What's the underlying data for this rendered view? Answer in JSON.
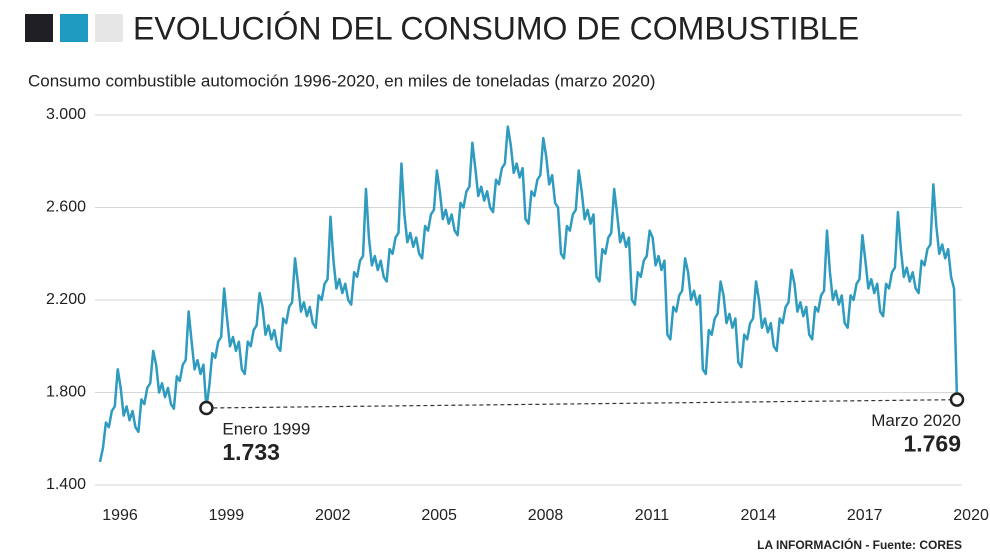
{
  "chart_data": {
    "type": "line",
    "title": "EVOLUCIÓN DEL CONSUMO DE COMBUSTIBLE",
    "subtitle": "Consumo combustible automoción 1996-2020, en miles de toneladas (marzo 2020)",
    "source": "LA INFORMACIÓN - Fuente: CORES",
    "categories": [
      "1996",
      null,
      null,
      null,
      null,
      null,
      null,
      null,
      null,
      null,
      null,
      null,
      null,
      null,
      null,
      null,
      null,
      null,
      null,
      null,
      null,
      null,
      null,
      null,
      null,
      null,
      null,
      null,
      null,
      null,
      null,
      null,
      null,
      null,
      null,
      null,
      "1999",
      null,
      null,
      null,
      null,
      null,
      null,
      null,
      null,
      null,
      null,
      null,
      null,
      null,
      null,
      null,
      null,
      null,
      null,
      null,
      null,
      null,
      null,
      null,
      null,
      null,
      null,
      null,
      null,
      null,
      null,
      null,
      null,
      null,
      null,
      null,
      "2002",
      null,
      null,
      null,
      null,
      null,
      null,
      null,
      null,
      null,
      null,
      null,
      null,
      null,
      null,
      null,
      null,
      null,
      null,
      null,
      null,
      null,
      null,
      null,
      null,
      null,
      null,
      null,
      null,
      null,
      null,
      null,
      null,
      null,
      null,
      null,
      "2005",
      null,
      null,
      null,
      null,
      null,
      null,
      null,
      null,
      null,
      null,
      null,
      null,
      null,
      null,
      null,
      null,
      null,
      null,
      null,
      null,
      null,
      null,
      null,
      null,
      null,
      null,
      null,
      null,
      null,
      null,
      null,
      null,
      null,
      null,
      null,
      "2008",
      null,
      null,
      null,
      null,
      null,
      null,
      null,
      null,
      null,
      null,
      null,
      null,
      null,
      null,
      null,
      null,
      null,
      null,
      null,
      null,
      null,
      null,
      null,
      null,
      null,
      null,
      null,
      null,
      null,
      null,
      null,
      null,
      null,
      null,
      null,
      "2011",
      null,
      null,
      null,
      null,
      null,
      null,
      null,
      null,
      null,
      null,
      null,
      null,
      null,
      null,
      null,
      null,
      null,
      null,
      null,
      null,
      null,
      null,
      null,
      null,
      null,
      null,
      null,
      null,
      null,
      null,
      null,
      null,
      null,
      null,
      null,
      "2014",
      null,
      null,
      null,
      null,
      null,
      null,
      null,
      null,
      null,
      null,
      null,
      null,
      null,
      null,
      null,
      null,
      null,
      null,
      null,
      null,
      null,
      null,
      null,
      null,
      null,
      null,
      null,
      null,
      null,
      null,
      null,
      null,
      null,
      null,
      null,
      "2017",
      null,
      null,
      null,
      null,
      null,
      null,
      null,
      null,
      null,
      null,
      null,
      null,
      null,
      null,
      null,
      null,
      null,
      null,
      null,
      null,
      null,
      null,
      null,
      null,
      null,
      null,
      null,
      null,
      null,
      null,
      null,
      null,
      null,
      null,
      null,
      "2020",
      null,
      null
    ],
    "series": [
      {
        "color": "#2e9bbf",
        "values": [
          1500,
          1560,
          1670,
          1650,
          1720,
          1740,
          1900,
          1820,
          1700,
          1740,
          1680,
          1720,
          1650,
          1630,
          1770,
          1750,
          1820,
          1840,
          1980,
          1920,
          1800,
          1840,
          1780,
          1820,
          1750,
          1730,
          1870,
          1850,
          1920,
          1940,
          2150,
          2020,
          1900,
          1940,
          1880,
          1920,
          1733,
          1830,
          1970,
          1950,
          2020,
          2040,
          2250,
          2120,
          2000,
          2040,
          1980,
          2020,
          1900,
          1880,
          2020,
          2000,
          2070,
          2090,
          2230,
          2170,
          2050,
          2090,
          2030,
          2070,
          2000,
          1980,
          2120,
          2100,
          2170,
          2190,
          2380,
          2270,
          2150,
          2190,
          2130,
          2170,
          2100,
          2080,
          2220,
          2200,
          2270,
          2290,
          2560,
          2370,
          2250,
          2290,
          2230,
          2270,
          2200,
          2180,
          2320,
          2300,
          2370,
          2390,
          2680,
          2470,
          2350,
          2390,
          2330,
          2370,
          2300,
          2280,
          2420,
          2400,
          2470,
          2490,
          2790,
          2570,
          2450,
          2490,
          2430,
          2470,
          2400,
          2380,
          2520,
          2500,
          2570,
          2590,
          2760,
          2670,
          2550,
          2590,
          2530,
          2570,
          2500,
          2480,
          2620,
          2600,
          2670,
          2690,
          2880,
          2770,
          2650,
          2690,
          2630,
          2670,
          2600,
          2580,
          2720,
          2700,
          2770,
          2790,
          2950,
          2870,
          2750,
          2790,
          2730,
          2770,
          2550,
          2530,
          2670,
          2650,
          2720,
          2740,
          2900,
          2820,
          2700,
          2740,
          2620,
          2600,
          2400,
          2380,
          2520,
          2500,
          2570,
          2590,
          2760,
          2670,
          2550,
          2590,
          2530,
          2570,
          2300,
          2280,
          2420,
          2400,
          2470,
          2490,
          2680,
          2570,
          2450,
          2490,
          2430,
          2470,
          2200,
          2180,
          2320,
          2300,
          2370,
          2390,
          2500,
          2470,
          2350,
          2390,
          2330,
          2370,
          2050,
          2030,
          2170,
          2150,
          2220,
          2240,
          2380,
          2320,
          2200,
          2240,
          2180,
          2220,
          1900,
          1880,
          2070,
          2050,
          2120,
          2140,
          2280,
          2220,
          2100,
          2140,
          2080,
          2120,
          1930,
          1910,
          2050,
          2030,
          2100,
          2120,
          2280,
          2200,
          2080,
          2120,
          2060,
          2100,
          2000,
          1980,
          2120,
          2100,
          2170,
          2190,
          2330,
          2270,
          2150,
          2190,
          2130,
          2170,
          2050,
          2030,
          2170,
          2150,
          2220,
          2240,
          2500,
          2320,
          2200,
          2240,
          2180,
          2220,
          2100,
          2080,
          2220,
          2200,
          2270,
          2290,
          2480,
          2370,
          2250,
          2290,
          2230,
          2270,
          2150,
          2130,
          2270,
          2250,
          2320,
          2340,
          2580,
          2420,
          2300,
          2340,
          2280,
          2320,
          2250,
          2230,
          2370,
          2350,
          2420,
          2440,
          2700,
          2520,
          2400,
          2440,
          2380,
          2420,
          2300,
          2250,
          1769
        ]
      }
    ],
    "ylim": [
      1400,
      3000
    ],
    "yticks": [
      {
        "value": 1400,
        "label": "1.400"
      },
      {
        "value": 1800,
        "label": "1.800"
      },
      {
        "value": 2200,
        "label": "2.200"
      },
      {
        "value": 2600,
        "label": "2.600"
      },
      {
        "value": 3000,
        "label": "3.000"
      }
    ],
    "grid": true,
    "annotations": [
      {
        "text": "Enero 1999",
        "value": 1733,
        "label": "1.733"
      },
      {
        "text": "Marzo 2020",
        "value": 1769,
        "label": "1.769"
      }
    ]
  }
}
